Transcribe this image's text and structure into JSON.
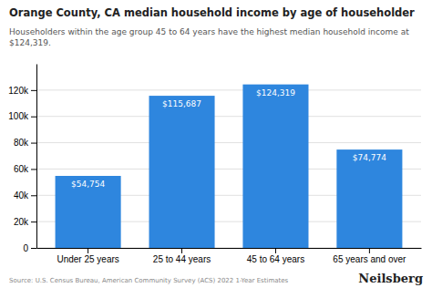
{
  "chart_data": {
    "type": "bar",
    "title": "Orange County, CA median household income by age of householder",
    "subtitle": "Householders within the age group 45 to 64 years have the highest median household income at\n$124,319.",
    "annotations": [
      "Source: U.S. Census Bureau, American Community Survey (ACS) 2022 1-Year Estimates",
      "Neilsberg"
    ],
    "categories": [
      "Under 25 years",
      "25 to 44 years",
      "45 to 64 years",
      "65 years and over"
    ],
    "values": [
      54754,
      115687,
      124319,
      74774
    ],
    "value_labels": [
      "$54,754",
      "$115,687",
      "$124,319",
      "$74,774"
    ],
    "data_labels": true,
    "color": "#2e86de",
    "ylim": [
      0,
      140000
    ],
    "yticks": [
      0,
      {
        "value": 20000,
        "label": "20k"
      },
      {
        "value": 40000,
        "label": "40k"
      },
      {
        "value": 60000,
        "label": "60k"
      },
      {
        "value": 80000,
        "label": "80k"
      },
      {
        "value": 100000,
        "label": "100k"
      },
      {
        "value": 120000,
        "label": "120k"
      }
    ],
    "grid": true
  }
}
